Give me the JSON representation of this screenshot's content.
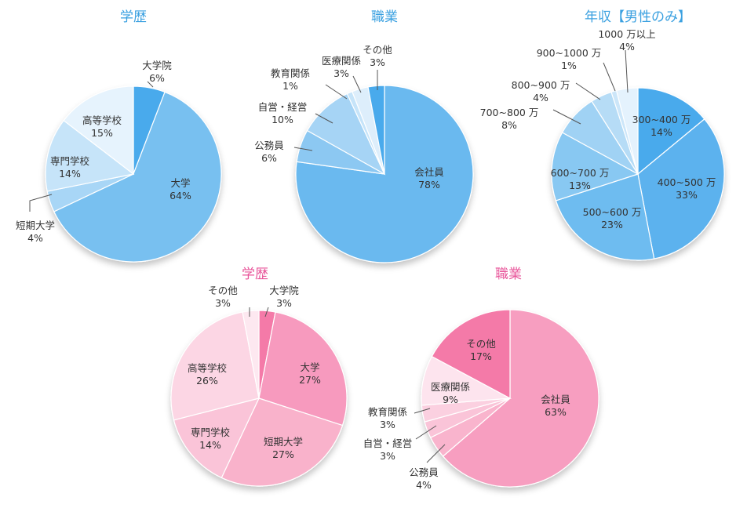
{
  "colors": {
    "blue_title": "#3aa0e0",
    "pink_title": "#e8559a",
    "blue_shades": [
      "#4aaaec",
      "#6ab9ef",
      "#8cc8f2",
      "#a6d4f5",
      "#c0e0f8",
      "#d8ecfb",
      "#e8f4fd"
    ],
    "pink_shades": [
      "#f47aa8",
      "#f590b8",
      "#f7a4c4",
      "#f9b6cf",
      "#fbc8da",
      "#fcd6e4",
      "#fde6ee"
    ]
  },
  "chart_data": [
    {
      "type": "pie",
      "title": "学歴",
      "slices": [
        {
          "label": "大学院",
          "value": 6
        },
        {
          "label": "大学",
          "value": 64
        },
        {
          "label": "短期大学",
          "value": 4
        },
        {
          "label": "専門学校",
          "value": 14
        },
        {
          "label": "高等学校",
          "value": 15
        }
      ]
    },
    {
      "type": "pie",
      "title": "職業",
      "slices": [
        {
          "label": "会社員",
          "value": 78
        },
        {
          "label": "公務員",
          "value": 6
        },
        {
          "label": "自営・経営",
          "value": 10
        },
        {
          "label": "教育関係",
          "value": 1
        },
        {
          "label": "医療関係",
          "value": 3
        },
        {
          "label": "その他",
          "value": 3
        }
      ]
    },
    {
      "type": "pie",
      "title": "年収【男性のみ】",
      "slices": [
        {
          "label": "300~400 万",
          "value": 14
        },
        {
          "label": "400~500 万",
          "value": 33
        },
        {
          "label": "500~600 万",
          "value": 23
        },
        {
          "label": "600~700 万",
          "value": 13
        },
        {
          "label": "700~800 万",
          "value": 8
        },
        {
          "label": "800~900 万",
          "value": 4
        },
        {
          "label": "900~1000 万",
          "value": 1
        },
        {
          "label": "1000 万以上",
          "value": 4
        }
      ]
    },
    {
      "type": "pie",
      "title": "学歴",
      "slices": [
        {
          "label": "大学院",
          "value": 3
        },
        {
          "label": "大学",
          "value": 27
        },
        {
          "label": "短期大学",
          "value": 27
        },
        {
          "label": "専門学校",
          "value": 14
        },
        {
          "label": "高等学校",
          "value": 26
        },
        {
          "label": "その他",
          "value": 3
        }
      ]
    },
    {
      "type": "pie",
      "title": "職業",
      "slices": [
        {
          "label": "会社員",
          "value": 63
        },
        {
          "label": "公務員",
          "value": 4
        },
        {
          "label": "自営・経営",
          "value": 3
        },
        {
          "label": "教育関係",
          "value": 3
        },
        {
          "label": "医療関係",
          "value": 9
        },
        {
          "label": "その他",
          "value": 17
        }
      ]
    }
  ]
}
